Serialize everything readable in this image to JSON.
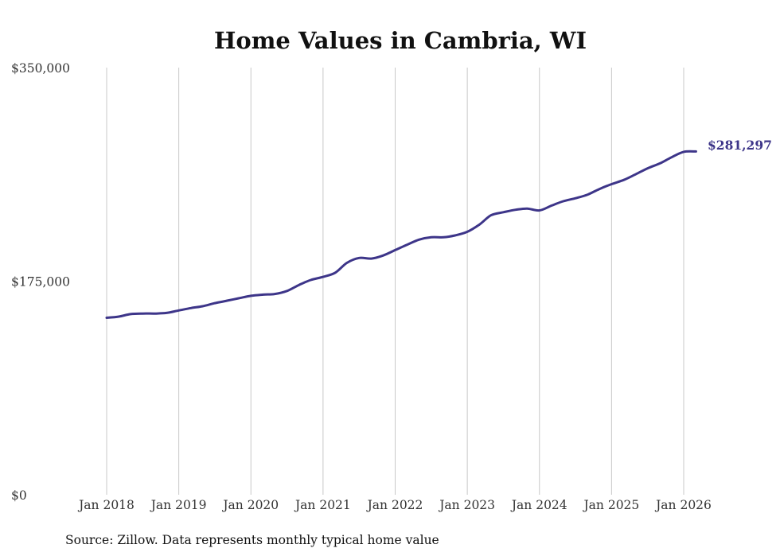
{
  "chart_data": {
    "type": "line",
    "title": "Home Values in Cambria, WI",
    "source": "Source: Zillow. Data represents monthly typical home value",
    "xlabel": "",
    "ylabel": "",
    "ylim": [
      0,
      350000
    ],
    "y_ticks": [
      0,
      175000,
      350000
    ],
    "y_tick_labels": [
      "$0",
      "$175,000",
      "$350,000"
    ],
    "x_ticks": [
      2018,
      2019,
      2020,
      2021,
      2022,
      2023,
      2024,
      2025,
      2026
    ],
    "x_tick_labels": [
      "Jan 2018",
      "Jan 2019",
      "Jan 2020",
      "Jan 2021",
      "Jan 2022",
      "Jan 2023",
      "Jan 2024",
      "Jan 2025",
      "Jan 2026"
    ],
    "xlim": [
      2018,
      2026.17
    ],
    "grid": "vertical",
    "end_label": "$281,297",
    "series": [
      {
        "name": "Typical home value",
        "color": "#3d3589",
        "x": [
          2018.0,
          2018.17,
          2018.33,
          2018.5,
          2018.67,
          2018.83,
          2019.0,
          2019.17,
          2019.33,
          2019.5,
          2019.67,
          2019.83,
          2020.0,
          2020.17,
          2020.33,
          2020.5,
          2020.67,
          2020.83,
          2021.0,
          2021.17,
          2021.33,
          2021.5,
          2021.67,
          2021.83,
          2022.0,
          2022.17,
          2022.33,
          2022.5,
          2022.67,
          2022.83,
          2023.0,
          2023.17,
          2023.33,
          2023.5,
          2023.67,
          2023.83,
          2024.0,
          2024.17,
          2024.33,
          2024.5,
          2024.67,
          2024.83,
          2025.0,
          2025.17,
          2025.33,
          2025.5,
          2025.67,
          2025.83,
          2026.0,
          2026.17
        ],
        "values": [
          145000,
          146000,
          148000,
          148500,
          148500,
          149000,
          151000,
          153000,
          154500,
          157000,
          159000,
          161000,
          163000,
          164000,
          164500,
          167000,
          172000,
          176000,
          178500,
          182000,
          190000,
          194000,
          193500,
          196000,
          200500,
          205000,
          209000,
          211000,
          211000,
          212500,
          215500,
          221500,
          229000,
          231500,
          233500,
          234500,
          233000,
          237000,
          240500,
          243000,
          246000,
          250500,
          254500,
          258000,
          262500,
          267500,
          271500,
          276500,
          281000,
          281297
        ]
      }
    ]
  }
}
